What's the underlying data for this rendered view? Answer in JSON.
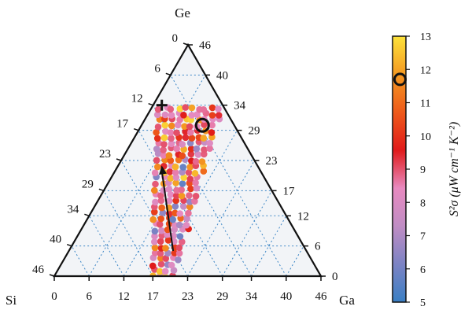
{
  "chart_data": {
    "type": "ternary-scatter",
    "vertices": {
      "top": "Ge",
      "left": "Si",
      "right": "Ga"
    },
    "ticks": [
      "0",
      "6",
      "12",
      "17",
      "23",
      "29",
      "34",
      "40",
      "46"
    ],
    "tick_values": [
      0,
      6,
      12,
      17,
      23,
      29,
      34,
      40,
      46
    ],
    "axis_max": 46,
    "grid": "dotted",
    "colorbar": {
      "label": "S²σ (μW cm⁻¹ K⁻²)",
      "ticks": [
        "5",
        "6",
        "7",
        "8",
        "9",
        "10",
        "11",
        "12",
        "13"
      ],
      "range": [
        5,
        13
      ],
      "marker_value": 11.7,
      "colors": [
        "#3a7fc4",
        "#7c83c4",
        "#c08dc4",
        "#e88ac0",
        "#e01a1a",
        "#ee5a1a",
        "#f49a22",
        "#fde23a"
      ]
    },
    "band": {
      "description_points_ge": [
        {
          "ge": 0,
          "ga_low": 17,
          "ga_high": 21
        },
        {
          "ge": 34,
          "ga_low": 1,
          "ga_high": 12
        }
      ],
      "value_range": [
        5,
        13
      ]
    },
    "markers": {
      "plus": {
        "ge": 34,
        "ga": 1.5
      },
      "circle": {
        "ge": 30,
        "ga": 10.5
      }
    },
    "arrow": {
      "from": {
        "ge": 5,
        "ga": 18
      },
      "to": {
        "ge": 22,
        "ga": 7.5
      }
    }
  }
}
